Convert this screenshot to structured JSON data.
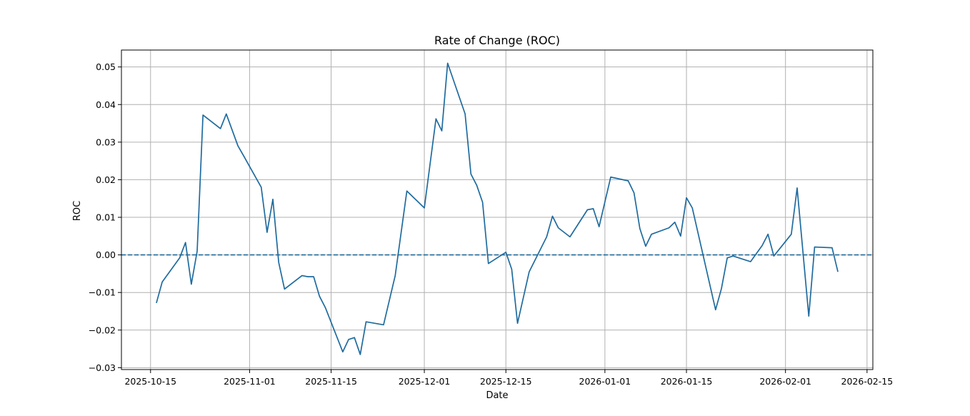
{
  "chart_data": {
    "type": "line",
    "title": "Rate of Change (ROC)",
    "xlabel": "Date",
    "ylabel": "ROC",
    "grid": true,
    "xlim": [
      "2025-10-10",
      "2026-02-16"
    ],
    "ylim": [
      -0.0305,
      0.0545
    ],
    "x_ticks": [
      "2025-10-15",
      "2025-11-01",
      "2025-11-15",
      "2025-12-01",
      "2025-12-15",
      "2026-01-01",
      "2026-01-15",
      "2026-02-01",
      "2026-02-15"
    ],
    "y_ticks": [
      {
        "value": -0.03,
        "label": "−0.03"
      },
      {
        "value": -0.02,
        "label": "−0.02"
      },
      {
        "value": -0.01,
        "label": "−0.01"
      },
      {
        "value": 0.0,
        "label": "0.00"
      },
      {
        "value": 0.01,
        "label": "0.01"
      },
      {
        "value": 0.02,
        "label": "0.02"
      },
      {
        "value": 0.03,
        "label": "0.03"
      },
      {
        "value": 0.04,
        "label": "0.04"
      },
      {
        "value": 0.05,
        "label": "0.05"
      }
    ],
    "reference_line": {
      "y": 0.0,
      "style": "dashed"
    },
    "series": [
      {
        "color": "#1f6b9e",
        "points": [
          [
            "2025-10-16",
            -0.0128
          ],
          [
            "2025-10-17",
            -0.0072
          ],
          [
            "2025-10-20",
            -0.0008
          ],
          [
            "2025-10-21",
            0.0033
          ],
          [
            "2025-10-22",
            -0.0078
          ],
          [
            "2025-10-23",
            0.001
          ],
          [
            "2025-10-24",
            0.0372
          ],
          [
            "2025-10-27",
            0.0336
          ],
          [
            "2025-10-28",
            0.0375
          ],
          [
            "2025-10-30",
            0.029
          ],
          [
            "2025-10-31",
            0.0263
          ],
          [
            "2025-11-03",
            0.018
          ],
          [
            "2025-11-04",
            0.006
          ],
          [
            "2025-11-05",
            0.0148
          ],
          [
            "2025-11-06",
            -0.002
          ],
          [
            "2025-11-07",
            -0.0091
          ],
          [
            "2025-11-10",
            -0.0055
          ],
          [
            "2025-11-11",
            -0.0058
          ],
          [
            "2025-11-12",
            -0.0058
          ],
          [
            "2025-11-13",
            -0.011
          ],
          [
            "2025-11-14",
            -0.014
          ],
          [
            "2025-11-17",
            -0.0258
          ],
          [
            "2025-11-18",
            -0.0225
          ],
          [
            "2025-11-19",
            -0.022
          ],
          [
            "2025-11-20",
            -0.0265
          ],
          [
            "2025-11-21",
            -0.0178
          ],
          [
            "2025-11-24",
            -0.0186
          ],
          [
            "2025-11-26",
            -0.0055
          ],
          [
            "2025-11-28",
            0.017
          ],
          [
            "2025-12-01",
            0.0125
          ],
          [
            "2025-12-03",
            0.0362
          ],
          [
            "2025-12-04",
            0.033
          ],
          [
            "2025-12-05",
            0.051
          ],
          [
            "2025-12-08",
            0.0375
          ],
          [
            "2025-12-09",
            0.0215
          ],
          [
            "2025-12-10",
            0.0185
          ],
          [
            "2025-12-11",
            0.014
          ],
          [
            "2025-12-12",
            -0.0023
          ],
          [
            "2025-12-15",
            0.0007
          ],
          [
            "2025-12-16",
            -0.0038
          ],
          [
            "2025-12-17",
            -0.0182
          ],
          [
            "2025-12-19",
            -0.0045
          ],
          [
            "2025-12-22",
            0.0048
          ],
          [
            "2025-12-23",
            0.0103
          ],
          [
            "2025-12-24",
            0.0072
          ],
          [
            "2025-12-26",
            0.0048
          ],
          [
            "2025-12-29",
            0.012
          ],
          [
            "2025-12-30",
            0.0123
          ],
          [
            "2025-12-31",
            0.0075
          ],
          [
            "2026-01-02",
            0.0207
          ],
          [
            "2026-01-05",
            0.0197
          ],
          [
            "2026-01-06",
            0.0165
          ],
          [
            "2026-01-07",
            0.007
          ],
          [
            "2026-01-08",
            0.0023
          ],
          [
            "2026-01-09",
            0.0055
          ],
          [
            "2026-01-12",
            0.0072
          ],
          [
            "2026-01-13",
            0.0087
          ],
          [
            "2026-01-14",
            0.005
          ],
          [
            "2026-01-15",
            0.0152
          ],
          [
            "2026-01-16",
            0.0125
          ],
          [
            "2026-01-20",
            -0.0146
          ],
          [
            "2026-01-21",
            -0.009
          ],
          [
            "2026-01-22",
            -0.0008
          ],
          [
            "2026-01-23",
            -0.0003
          ],
          [
            "2026-01-26",
            -0.0018
          ],
          [
            "2026-01-28",
            0.0025
          ],
          [
            "2026-01-29",
            0.0055
          ],
          [
            "2026-01-30",
            -0.0003
          ],
          [
            "2026-02-02",
            0.0055
          ],
          [
            "2026-02-03",
            0.0178
          ],
          [
            "2026-02-05",
            -0.0163
          ],
          [
            "2026-02-06",
            0.0021
          ],
          [
            "2026-02-09",
            0.0019
          ],
          [
            "2026-02-10",
            -0.0045
          ]
        ]
      }
    ]
  }
}
